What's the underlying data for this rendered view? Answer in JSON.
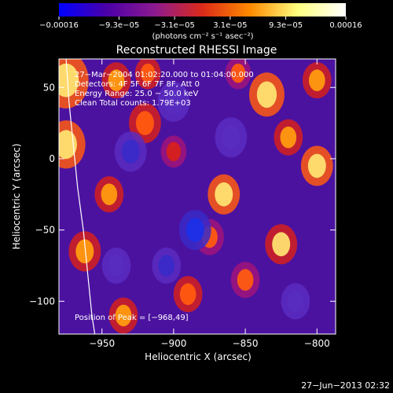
{
  "chart_data": {
    "type": "heatmap",
    "title": "Reconstructed RHESSI Image",
    "xlabel": "Heliocentric X (arcsec)",
    "ylabel": "Heliocentric Y (arcsec)",
    "xlim": [
      -980,
      -787
    ],
    "ylim": [
      -123,
      70
    ],
    "xticks": [
      -950,
      -900,
      -850,
      -800
    ],
    "xtick_labels": [
      "−950",
      "−900",
      "−850",
      "−800"
    ],
    "yticks": [
      50,
      0,
      -50,
      -100
    ],
    "ytick_labels": [
      "50",
      "0",
      "−50",
      "−100"
    ],
    "colorbar": {
      "min": -0.00016,
      "max": 0.00016,
      "tick_labels": [
        "−0.00016",
        "−9.3e−05",
        "−3.1e−05",
        "3.1e−05",
        "9.3e−05",
        "0.00016"
      ],
      "tick_values": [
        -0.00016,
        -9.3e-05,
        -3.1e-05,
        3.1e-05,
        9.3e-05,
        0.00016
      ],
      "unit_label": "(photons cm⁻² s⁻¹ asec⁻²)",
      "colors": [
        "#0000ff",
        "#4b00a8",
        "#8c1a90",
        "#dc2a1a",
        "#ff8a00",
        "#ffff80",
        "#ffffff"
      ]
    },
    "annotations": [
      "27−Mar−2004 01:02:20.000 to 01:04:00.000",
      "Detectors: 4F 5F 6F 7F 8F, Att 0",
      "Energy Range: 25.0 − 50.0 keV",
      "Clean       Total counts: 1.79E+03"
    ],
    "peak_label": "Position of Peak = [−968,49]",
    "limb": [
      [
        -975,
        70
      ],
      [
        -973,
        40
      ],
      [
        -970,
        10
      ],
      [
        -967,
        -20
      ],
      [
        -963,
        -50
      ],
      [
        -960,
        -80
      ],
      [
        -957,
        -110
      ],
      [
        -955,
        -123
      ]
    ],
    "blobs": [
      {
        "x": -975,
        "y": 55,
        "v": 1.0,
        "s": 14
      },
      {
        "x": -975,
        "y": 10,
        "v": 0.95,
        "s": 12
      },
      {
        "x": -940,
        "y": 55,
        "v": 0.85,
        "s": 9
      },
      {
        "x": -918,
        "y": 60,
        "v": 0.6,
        "s": 8
      },
      {
        "x": -945,
        "y": -25,
        "v": 0.85,
        "s": 9
      },
      {
        "x": -962,
        "y": -65,
        "v": 0.8,
        "s": 10
      },
      {
        "x": -920,
        "y": 25,
        "v": 0.7,
        "s": 10
      },
      {
        "x": -900,
        "y": 5,
        "v": 0.5,
        "s": 8
      },
      {
        "x": -865,
        "y": -25,
        "v": 0.95,
        "s": 10
      },
      {
        "x": -875,
        "y": -55,
        "v": 0.55,
        "s": 9
      },
      {
        "x": -835,
        "y": 45,
        "v": 0.95,
        "s": 11
      },
      {
        "x": -820,
        "y": 15,
        "v": 0.85,
        "s": 9
      },
      {
        "x": -800,
        "y": -5,
        "v": 0.95,
        "s": 10
      },
      {
        "x": -800,
        "y": 55,
        "v": 0.8,
        "s": 9
      },
      {
        "x": -825,
        "y": -60,
        "v": 0.9,
        "s": 10
      },
      {
        "x": -850,
        "y": -85,
        "v": 0.55,
        "s": 9
      },
      {
        "x": -935,
        "y": -110,
        "v": 0.75,
        "s": 9
      },
      {
        "x": -890,
        "y": -95,
        "v": 0.6,
        "s": 9
      },
      {
        "x": -855,
        "y": 60,
        "v": 0.55,
        "s": 8
      },
      {
        "x": -930,
        "y": 5,
        "v": -0.5,
        "s": 10
      },
      {
        "x": -885,
        "y": -50,
        "v": -0.7,
        "s": 10
      },
      {
        "x": -905,
        "y": -75,
        "v": -0.5,
        "s": 9
      },
      {
        "x": -900,
        "y": 40,
        "v": -0.35,
        "s": 10
      },
      {
        "x": -860,
        "y": 15,
        "v": -0.3,
        "s": 10
      },
      {
        "x": -940,
        "y": -75,
        "v": -0.3,
        "s": 9
      },
      {
        "x": -815,
        "y": -100,
        "v": -0.2,
        "s": 9
      }
    ]
  },
  "footer": {
    "timestamp": "27−Jun−2013 02:32"
  }
}
